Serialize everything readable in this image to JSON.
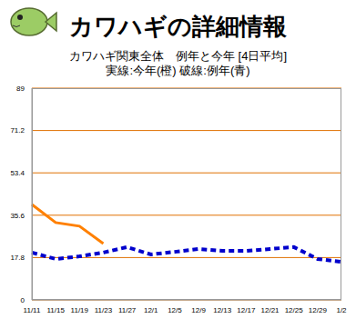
{
  "chart_data": {
    "type": "line",
    "title": "カワハギの詳細情報",
    "subtitle": [
      "カワハギ関東全体　例年と今年 [4日平均]",
      "実線:今年(橙)  破線:例年(青)"
    ],
    "categories": [
      "11/11",
      "11/15",
      "11/19",
      "11/23",
      "11/27",
      "12/1",
      "12/5",
      "12/9",
      "12/13",
      "12/17",
      "12/21",
      "12/25",
      "12/29",
      "1/2"
    ],
    "series": [
      {
        "color": "#ff8000",
        "line_style": "solid",
        "values": [
          40.1,
          32.5,
          31,
          23.7,
          null,
          null,
          null,
          null,
          null,
          null,
          null,
          null,
          null,
          null
        ]
      },
      {
        "color": "#0000cc",
        "line_style": "dashed",
        "values": [
          19.9,
          17.2,
          18.3,
          19.9,
          22.2,
          19.1,
          20.2,
          21.4,
          20.6,
          20.6,
          21.4,
          22.2,
          17.2,
          16
        ]
      }
    ],
    "ylim": [
      0,
      89
    ],
    "yticks": [
      0,
      17.8,
      35.6,
      53.4,
      71.2,
      89
    ],
    "grid": true
  }
}
